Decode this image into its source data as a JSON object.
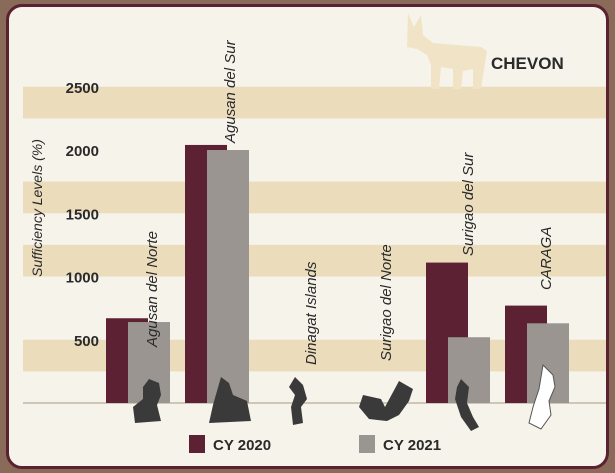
{
  "chart_data": {
    "type": "bar",
    "title": "CHEVON",
    "ylabel": "Sufficiency  Levels (%)",
    "xlabel": "",
    "ylim": [
      0,
      2700
    ],
    "yticks": [
      500,
      1000,
      1500,
      2000,
      2500
    ],
    "grid": "alternating tan bands",
    "legend_position": "bottom",
    "categories": [
      "Agusan del Norte",
      "Agusan del Sur",
      "Dinagat Islands",
      "Surigao del Norte",
      "Surigao del Sur",
      "CARAGA"
    ],
    "series": [
      {
        "name": "CY 2020",
        "color": "#5c2133",
        "values": [
          670,
          2040,
          0,
          0,
          1110,
          770
        ]
      },
      {
        "name": "CY 2021",
        "color": "#9a9590",
        "values": [
          640,
          2000,
          0,
          0,
          520,
          630
        ]
      }
    ]
  },
  "colors": {
    "band": "#ebdcbc",
    "background": "#f6f3ea",
    "frame": "#5a2230",
    "map": "#3a3a3a",
    "goat": "#f1e4c6"
  },
  "icons": [
    "goat-icon",
    "province-map-icon"
  ]
}
